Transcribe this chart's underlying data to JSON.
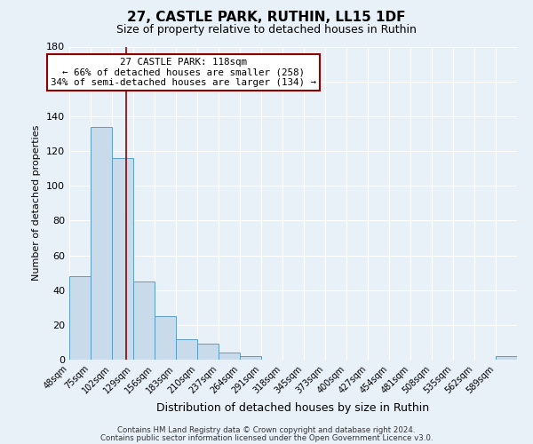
{
  "title": "27, CASTLE PARK, RUTHIN, LL15 1DF",
  "subtitle": "Size of property relative to detached houses in Ruthin",
  "xlabel": "Distribution of detached houses by size in Ruthin",
  "ylabel": "Number of detached properties",
  "bin_labels": [
    "48sqm",
    "75sqm",
    "102sqm",
    "129sqm",
    "156sqm",
    "183sqm",
    "210sqm",
    "237sqm",
    "264sqm",
    "291sqm",
    "318sqm",
    "345sqm",
    "373sqm",
    "400sqm",
    "427sqm",
    "454sqm",
    "481sqm",
    "508sqm",
    "535sqm",
    "562sqm",
    "589sqm"
  ],
  "bar_values": [
    48,
    134,
    116,
    45,
    25,
    12,
    9,
    4,
    2,
    0,
    0,
    0,
    0,
    0,
    0,
    0,
    0,
    0,
    0,
    0,
    2
  ],
  "num_bins": 21,
  "bar_color": "#c9daea",
  "bar_edge_color": "#5b9ec9",
  "vline_x": 2.667,
  "vline_color": "#8b0000",
  "annotation_title": "27 CASTLE PARK: 118sqm",
  "annotation_line1": "← 66% of detached houses are smaller (258)",
  "annotation_line2": "34% of semi-detached houses are larger (134) →",
  "annotation_box_color": "#ffffff",
  "annotation_box_edgecolor": "#8b0000",
  "ylim": [
    0,
    180
  ],
  "yticks": [
    0,
    20,
    40,
    60,
    80,
    100,
    120,
    140,
    160,
    180
  ],
  "background_color": "#e8f0f8",
  "grid_color": "#ffffff",
  "footer1": "Contains HM Land Registry data © Crown copyright and database right 2024.",
  "footer2": "Contains public sector information licensed under the Open Government Licence v3.0."
}
